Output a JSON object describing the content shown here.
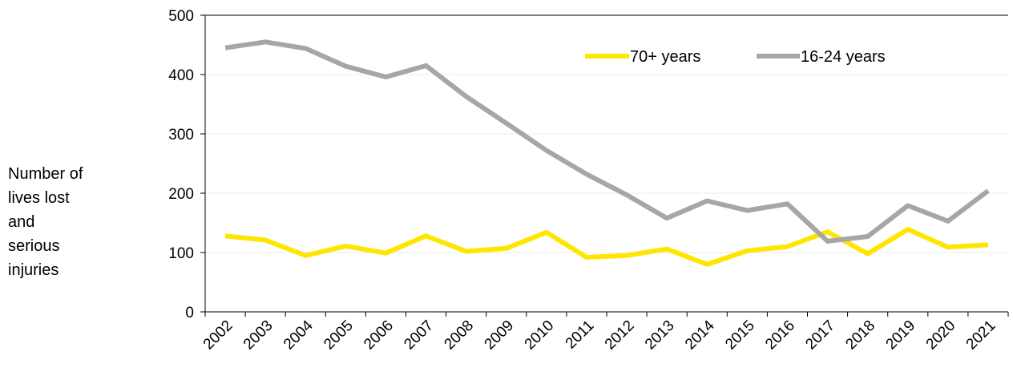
{
  "chart_data": {
    "type": "line",
    "title": "",
    "xlabel": "",
    "ylabel_lines": [
      "Number of",
      "lives lost",
      "and",
      "serious",
      "injuries"
    ],
    "x": [
      "2002",
      "2003",
      "2004",
      "2005",
      "2006",
      "2007",
      "2008",
      "2009",
      "2010",
      "2011",
      "2012",
      "2013",
      "2014",
      "2015",
      "2016",
      "2017",
      "2018",
      "2019",
      "2020",
      "2021"
    ],
    "ylim": [
      0,
      500
    ],
    "yticks": [
      0,
      100,
      200,
      300,
      400,
      500
    ],
    "grid": "horizontal",
    "legend": "top-right",
    "series": [
      {
        "name": "70+ years",
        "color": "#FFE600",
        "values": [
          128,
          121,
          95,
          111,
          99,
          128,
          102,
          107,
          134,
          92,
          95,
          106,
          80,
          103,
          110,
          135,
          98,
          139,
          109,
          113
        ]
      },
      {
        "name": "16-24 years",
        "color": "#A6A6A6",
        "values": [
          445,
          455,
          444,
          414,
          396,
          415,
          363,
          318,
          272,
          232,
          197,
          158,
          187,
          171,
          182,
          119,
          127,
          179,
          153,
          204
        ]
      }
    ]
  }
}
